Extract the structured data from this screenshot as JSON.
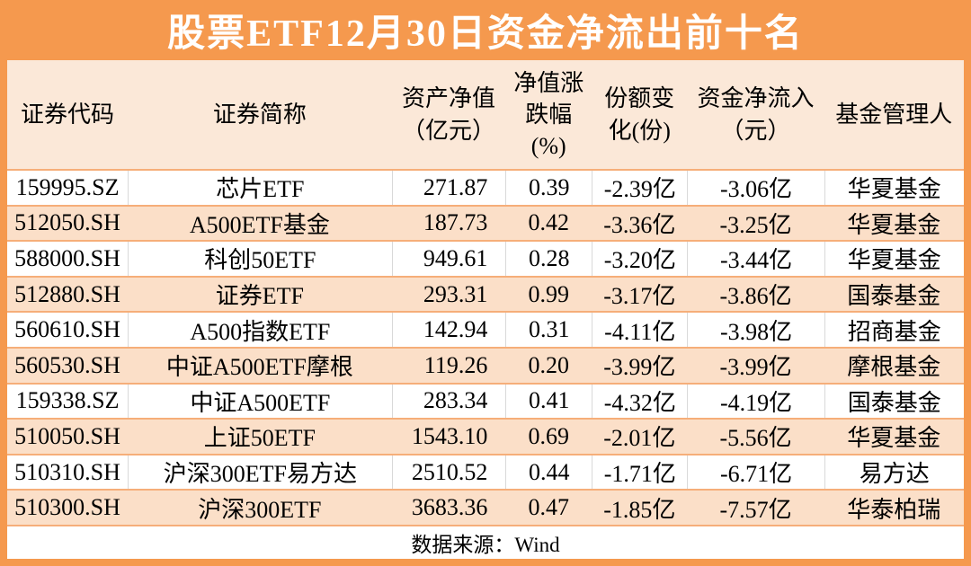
{
  "page_title": "股票ETF12月30日资金净流出前十名",
  "colors": {
    "accent_orange": "#f5994e",
    "header_fill": "#fbe8d8",
    "row_fill_alt": "#fbdfc8",
    "row_line_orange": "#f6ae79",
    "cell_line_gray": "#d9d9d9",
    "title_text": "#ffffff",
    "body_text": "#000000"
  },
  "table": {
    "column_ids": [
      "code",
      "name",
      "nav",
      "change-pct",
      "share-change",
      "net-inflow",
      "manager"
    ],
    "header_display": [
      "证券代码",
      "证券简称",
      "资产净值\n（亿元）",
      "净值涨\n跌幅\n(%)",
      "份额变\n化(份)",
      "资金净流入\n（元）",
      "基金管理人"
    ],
    "footer": "数据来源：Wind"
  },
  "chart_data": {
    "type": "table",
    "title": "股票ETF12月30日资金净流出前十名",
    "columns": [
      "证券代码",
      "证券简称",
      "资产净值（亿元）",
      "净值涨跌幅(%)",
      "份额变化(份)",
      "资金净流入（元）",
      "基金管理人"
    ],
    "rows": [
      [
        "159995.SZ",
        "芯片ETF",
        "271.87",
        "0.39",
        "-2.39亿",
        "-3.06亿",
        "华夏基金"
      ],
      [
        "512050.SH",
        "A500ETF基金",
        "187.73",
        "0.42",
        "-3.36亿",
        "-3.25亿",
        "华夏基金"
      ],
      [
        "588000.SH",
        "科创50ETF",
        "949.61",
        "0.28",
        "-3.20亿",
        "-3.44亿",
        "华夏基金"
      ],
      [
        "512880.SH",
        "证券ETF",
        "293.31",
        "0.99",
        "-3.17亿",
        "-3.86亿",
        "国泰基金"
      ],
      [
        "560610.SH",
        "A500指数ETF",
        "142.94",
        "0.31",
        "-4.11亿",
        "-3.98亿",
        "招商基金"
      ],
      [
        "560530.SH",
        "中证A500ETF摩根",
        "119.26",
        "0.20",
        "-3.99亿",
        "-3.99亿",
        "摩根基金"
      ],
      [
        "159338.SZ",
        "中证A500ETF",
        "283.34",
        "0.41",
        "-4.32亿",
        "-4.19亿",
        "国泰基金"
      ],
      [
        "510050.SH",
        "上证50ETF",
        "1543.10",
        "0.69",
        "-2.01亿",
        "-5.56亿",
        "华夏基金"
      ],
      [
        "510310.SH",
        "沪深300ETF易方达",
        "2510.52",
        "0.44",
        "-1.71亿",
        "-6.71亿",
        "易方达"
      ],
      [
        "510300.SH",
        "沪深300ETF",
        "3683.36",
        "0.47",
        "-1.85亿",
        "-7.57亿",
        "华泰柏瑞"
      ]
    ],
    "source": "数据来源：Wind",
    "layout": {
      "grid": "horizontal orange rules, gray column separators on white rows",
      "legend": "none"
    }
  }
}
